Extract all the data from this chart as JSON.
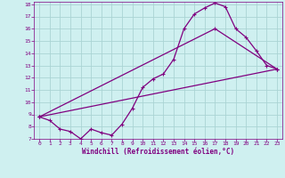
{
  "background_color": "#cff0f0",
  "grid_color": "#aad4d4",
  "line_color": "#800080",
  "xlabel": "Windchill (Refroidissement éolien,°C)",
  "xlim": [
    -0.5,
    23.5
  ],
  "ylim": [
    7,
    18.2
  ],
  "yticks": [
    7,
    8,
    9,
    10,
    11,
    12,
    13,
    14,
    15,
    16,
    17,
    18
  ],
  "xticks": [
    0,
    1,
    2,
    3,
    4,
    5,
    6,
    7,
    8,
    9,
    10,
    11,
    12,
    13,
    14,
    15,
    16,
    17,
    18,
    19,
    20,
    21,
    22,
    23
  ],
  "series1_x": [
    0,
    1,
    2,
    3,
    4,
    5,
    6,
    7,
    8,
    9,
    10,
    11,
    12,
    13,
    14,
    15,
    16,
    17,
    18,
    19,
    20,
    21,
    22,
    23
  ],
  "series1_y": [
    8.8,
    8.5,
    7.8,
    7.6,
    7.0,
    7.8,
    7.5,
    7.3,
    8.2,
    9.5,
    11.2,
    11.9,
    12.3,
    13.5,
    16.0,
    17.2,
    17.7,
    18.1,
    17.8,
    16.0,
    15.3,
    14.2,
    13.0,
    12.7
  ],
  "series2_x": [
    0,
    23
  ],
  "series2_y": [
    8.8,
    12.7
  ],
  "series3_x": [
    0,
    17,
    23
  ],
  "series3_y": [
    8.8,
    16.0,
    12.7
  ]
}
